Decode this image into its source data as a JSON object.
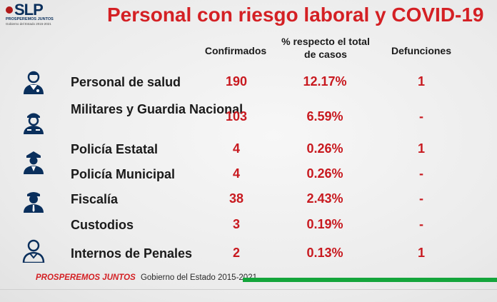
{
  "logo": {
    "mark": "SLP",
    "tagline": "PROSPEREMOS JUNTOS",
    "subline": "Gobierno del Estado 2015-2021"
  },
  "title": "Personal con riesgo laboral y COVID-19",
  "columns": {
    "confirmed": "Confirmados",
    "percent": "% respecto el total de casos",
    "deaths": "Defunciones"
  },
  "rows": [
    {
      "label": "Personal de salud",
      "confirmed": "190",
      "percent": "12.17%",
      "deaths": "1",
      "icon": "health-worker-icon"
    },
    {
      "label": "Militares y Guardia Nacional",
      "confirmed": "103",
      "percent": "6.59%",
      "deaths": "-",
      "icon": "soldier-icon"
    },
    {
      "label": "Policía Estatal",
      "confirmed": "4",
      "percent": "0.26%",
      "deaths": "1",
      "icon": "state-police-icon"
    },
    {
      "label": "Policía Municipal",
      "confirmed": "4",
      "percent": "0.26%",
      "deaths": "-",
      "icon": "municipal-police-icon"
    },
    {
      "label": "Fiscalía",
      "confirmed": "38",
      "percent": "2.43%",
      "deaths": "-",
      "icon": "prosecutor-icon"
    },
    {
      "label": "Custodios",
      "confirmed": "3",
      "percent": "0.19%",
      "deaths": "-",
      "icon": "guard-icon"
    },
    {
      "label": "Internos de Penales",
      "confirmed": "2",
      "percent": "0.13%",
      "deaths": "1",
      "icon": "inmate-icon"
    }
  ],
  "footer": {
    "brand": "PROSPEREMOS JUNTOS",
    "government": "Gobierno del Estado 2015-2021"
  },
  "colors": {
    "title_red": "#d42024",
    "value_red": "#c8191f",
    "navy": "#0a2f5c",
    "green": "#14a53b"
  }
}
